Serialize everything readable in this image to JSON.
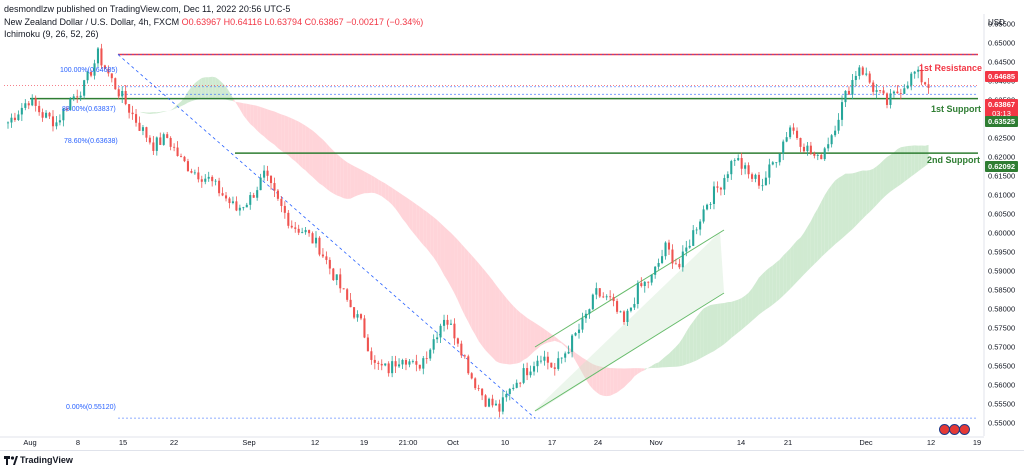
{
  "header": {
    "publisher": "desmondlzw published on TradingView.com, Dec 11, 2022 20:56 UTC-5",
    "symbol": "New Zealand Dollar / U.S. Dollar, 4h, FXCM",
    "o": "O0.63967",
    "h": "H0.64116",
    "l": "L0.63794",
    "c": "C0.63867",
    "change": "−0.00217 (−0.34%)",
    "indicator": "Ichimoku (9, 26, 52, 26)"
  },
  "currency": "USD",
  "footer": {
    "brand": "TradingView"
  },
  "price_tags": {
    "resistance": "0.64685",
    "last": "0.63867",
    "countdown": "03:13",
    "support1": "0.63525",
    "support2": "0.62092"
  },
  "levels": {
    "resistance_label": "1st Resistance",
    "support1_label": "1st Support",
    "support2_label": "2nd Support"
  },
  "fib_labels": {
    "f100": "100.00%(0.64685)",
    "f88": "88.00%(0.63837)",
    "f78": "78.60%(0.63638)",
    "f0": "0.00%(0.55120)"
  },
  "colors": {
    "up": "#26a69a",
    "down": "#ef5350",
    "resistance": "#f23645",
    "support": "#2e7d32",
    "cloud_bull": "#c8e6c9",
    "cloud_bear": "#ffcdd2",
    "fib": "#2962ff",
    "channel": "#66bb6a"
  },
  "chart_data": {
    "type": "candlestick",
    "title": "New Zealand Dollar / U.S. Dollar, 4h, FXCM",
    "ylabel": "USD",
    "ylim": [
      0.5465,
      0.6575
    ],
    "y_ticks": [
      "0.65500",
      "0.65000",
      "0.64500",
      "0.64000",
      "0.63500",
      "0.63000",
      "0.62500",
      "0.62000",
      "0.61500",
      "0.61000",
      "0.60500",
      "0.60000",
      "0.59500",
      "0.59000",
      "0.58500",
      "0.58000",
      "0.57500",
      "0.57000",
      "0.56500",
      "0.56000",
      "0.55500",
      "0.55000"
    ],
    "x_ticks": [
      "Aug",
      "8",
      "15",
      "22",
      "Sep",
      "12",
      "19",
      "21:00",
      "Oct",
      "10",
      "17",
      "24",
      "Nov",
      "14",
      "21",
      "Dec",
      "12",
      "19"
    ],
    "price_path": [
      [
        0,
        0.629
      ],
      [
        6,
        0.635
      ],
      [
        10,
        0.631
      ],
      [
        14,
        0.629
      ],
      [
        18,
        0.635
      ],
      [
        22,
        0.6385
      ],
      [
        26,
        0.6468
      ],
      [
        30,
        0.64
      ],
      [
        34,
        0.634
      ],
      [
        38,
        0.628
      ],
      [
        42,
        0.623
      ],
      [
        46,
        0.625
      ],
      [
        50,
        0.619
      ],
      [
        54,
        0.616
      ],
      [
        58,
        0.614
      ],
      [
        62,
        0.61
      ],
      [
        66,
        0.606
      ],
      [
        70,
        0.609
      ],
      [
        74,
        0.615
      ],
      [
        78,
        0.608
      ],
      [
        82,
        0.602
      ],
      [
        86,
        0.6
      ],
      [
        90,
        0.596
      ],
      [
        94,
        0.589
      ],
      [
        98,
        0.582
      ],
      [
        102,
        0.576
      ],
      [
        106,
        0.565
      ],
      [
        110,
        0.564
      ],
      [
        114,
        0.568
      ],
      [
        118,
        0.564
      ],
      [
        122,
        0.57
      ],
      [
        126,
        0.578
      ],
      [
        130,
        0.572
      ],
      [
        134,
        0.562
      ],
      [
        138,
        0.556
      ],
      [
        142,
        0.5535
      ],
      [
        146,
        0.56
      ],
      [
        150,
        0.564
      ],
      [
        154,
        0.568
      ],
      [
        158,
        0.564
      ],
      [
        162,
        0.57
      ],
      [
        166,
        0.576
      ],
      [
        170,
        0.584
      ],
      [
        174,
        0.582
      ],
      [
        178,
        0.576
      ],
      [
        182,
        0.585
      ],
      [
        186,
        0.588
      ],
      [
        190,
        0.596
      ],
      [
        194,
        0.591
      ],
      [
        198,
        0.6
      ],
      [
        202,
        0.608
      ],
      [
        206,
        0.613
      ],
      [
        210,
        0.62
      ],
      [
        214,
        0.615
      ],
      [
        218,
        0.613
      ],
      [
        222,
        0.62
      ],
      [
        226,
        0.628
      ],
      [
        230,
        0.623
      ],
      [
        234,
        0.619
      ],
      [
        238,
        0.626
      ],
      [
        242,
        0.636
      ],
      [
        246,
        0.644
      ],
      [
        250,
        0.638
      ],
      [
        254,
        0.634
      ],
      [
        258,
        0.638
      ],
      [
        262,
        0.642
      ],
      [
        266,
        0.6387
      ]
    ],
    "levels": {
      "resistance": 0.64685,
      "support1": 0.63525,
      "support2": 0.62092
    },
    "fibonacci": [
      {
        "label": "100.00%",
        "value": 0.64685
      },
      {
        "label": "88.00%",
        "value": 0.63837
      },
      {
        "label": "78.60%",
        "value": 0.63638
      },
      {
        "label": "0.00%",
        "value": 0.5512
      }
    ],
    "last_price": 0.63867,
    "ohlc": {
      "open": 0.63967,
      "high": 0.64116,
      "low": 0.63794,
      "close": 0.63867,
      "change": -0.00217,
      "change_pct": -0.34
    }
  }
}
